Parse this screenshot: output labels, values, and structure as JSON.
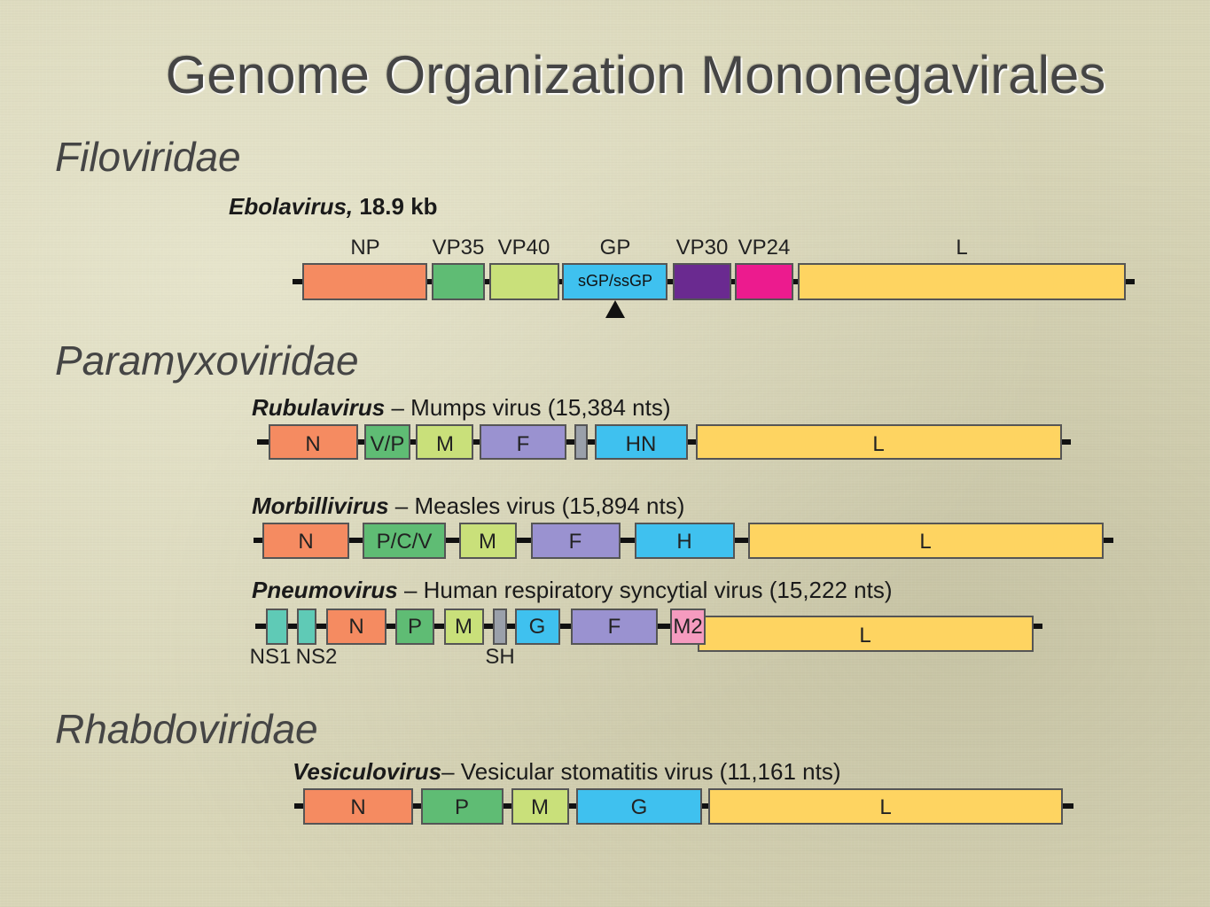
{
  "title": "Genome Organization Mononegavirales",
  "families": {
    "filoviridae": "Filoviridae",
    "paramyxoviridae": "Paramyxoviridae",
    "rhabdoviridae": "Rhabdoviridae"
  },
  "colors": {
    "N": "#f58b61",
    "P": "#5fbc74",
    "M": "#c9e07a",
    "F": "#9a92d0",
    "SH": "#9aa0aa",
    "G": "#3fc1ef",
    "L": "#fed461",
    "VP30": "#6a2a90",
    "VP24": "#ec1b8e",
    "NS": "#5fcab6",
    "M2": "#f59bbf"
  },
  "genomes": {
    "ebola": {
      "genus": "Ebolavirus,",
      "detail": " 18.9 kb",
      "genes": [
        "NP",
        "VP35",
        "VP40",
        "GP",
        "VP30",
        "VP24",
        "L"
      ],
      "gp_inner": "sGP/ssGP"
    },
    "rubula": {
      "genus": "Rubulavirus",
      "detail": " – Mumps virus  (15,384 nts)",
      "genes": [
        "N",
        "V/P",
        "M",
        "F",
        "",
        "HN",
        "L"
      ]
    },
    "morbilli": {
      "genus": "Morbillivirus",
      "detail": " – Measles virus (15,894 nts)",
      "genes": [
        "N",
        "P/C/V",
        "M",
        "F",
        "H",
        "L"
      ]
    },
    "pneumo": {
      "genus": "Pneumovirus",
      "detail": " – Human respiratory syncytial virus (15,222 nts)",
      "genes": [
        "NS1",
        "NS2",
        "N",
        "P",
        "M",
        "SH",
        "G",
        "F",
        "M2",
        "L"
      ]
    },
    "vesiculo": {
      "genus": "Vesiculovirus",
      "detail": "– Vesicular stomatitis virus (11,161 nts)",
      "genes": [
        "N",
        "P",
        "M",
        "G",
        "L"
      ]
    }
  }
}
